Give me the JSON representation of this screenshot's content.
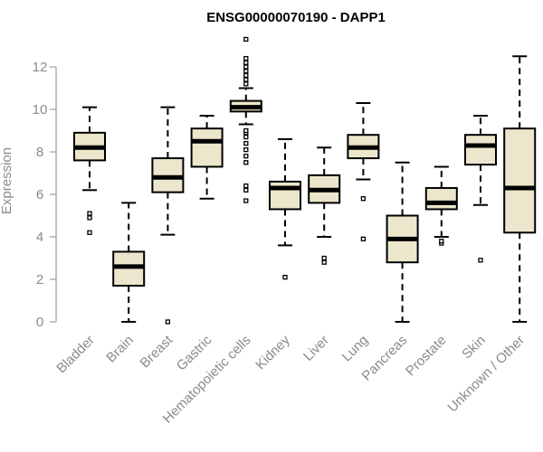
{
  "chart_data": {
    "type": "boxplot",
    "title": "ENSG00000070190 - DAPP1",
    "ylabel": "Expression",
    "xlabel": "",
    "ylim": [
      0,
      13.3
    ],
    "yticks": [
      0,
      2,
      4,
      6,
      8,
      10,
      12
    ],
    "categories": [
      "Bladder",
      "Brain",
      "Breast",
      "Gastric",
      "Hematopoietic cells",
      "Kidney",
      "Liver",
      "Lung",
      "Pancreas",
      "Prostate",
      "Skin",
      "Unknown / Other"
    ],
    "boxes": [
      {
        "category": "Bladder",
        "whisker_low": 6.2,
        "q1": 7.6,
        "median": 8.2,
        "q3": 8.9,
        "whisker_high": 10.1,
        "outliers": [
          4.2,
          4.9,
          5.1
        ]
      },
      {
        "category": "Brain",
        "whisker_low": 0.0,
        "q1": 1.7,
        "median": 2.6,
        "q3": 3.3,
        "whisker_high": 5.6,
        "outliers": []
      },
      {
        "category": "Breast",
        "whisker_low": 4.1,
        "q1": 6.1,
        "median": 6.8,
        "q3": 7.7,
        "whisker_high": 10.1,
        "outliers": [
          0.0
        ]
      },
      {
        "category": "Gastric",
        "whisker_low": 5.8,
        "q1": 7.3,
        "median": 8.5,
        "q3": 9.1,
        "whisker_high": 9.7,
        "outliers": []
      },
      {
        "category": "Hematopoietic cells",
        "whisker_low": 9.3,
        "q1": 9.9,
        "median": 10.1,
        "q3": 10.4,
        "whisker_high": 11.0,
        "outliers": [
          5.7,
          6.2,
          6.4,
          7.5,
          7.8,
          8.1,
          8.4,
          8.7,
          8.9,
          9.0,
          11.2,
          11.4,
          11.6,
          11.8,
          12.0,
          12.2,
          12.4,
          13.3
        ]
      },
      {
        "category": "Kidney",
        "whisker_low": 3.6,
        "q1": 5.3,
        "median": 6.3,
        "q3": 6.6,
        "whisker_high": 8.6,
        "outliers": [
          2.1
        ]
      },
      {
        "category": "Liver",
        "whisker_low": 4.0,
        "q1": 5.6,
        "median": 6.2,
        "q3": 6.9,
        "whisker_high": 8.2,
        "outliers": [
          2.8,
          3.0
        ]
      },
      {
        "category": "Lung",
        "whisker_low": 6.7,
        "q1": 7.7,
        "median": 8.2,
        "q3": 8.8,
        "whisker_high": 10.3,
        "outliers": [
          3.9,
          5.8
        ]
      },
      {
        "category": "Pancreas",
        "whisker_low": 0.0,
        "q1": 2.8,
        "median": 3.9,
        "q3": 5.0,
        "whisker_high": 7.5,
        "outliers": []
      },
      {
        "category": "Prostate",
        "whisker_low": 4.0,
        "q1": 5.3,
        "median": 5.6,
        "q3": 6.3,
        "whisker_high": 7.3,
        "outliers": [
          3.7,
          3.8
        ]
      },
      {
        "category": "Skin",
        "whisker_low": 5.5,
        "q1": 7.4,
        "median": 8.3,
        "q3": 8.8,
        "whisker_high": 9.7,
        "outliers": [
          2.9
        ]
      },
      {
        "category": "Unknown / Other",
        "whisker_low": 0.0,
        "q1": 4.2,
        "median": 6.3,
        "q3": 9.1,
        "whisker_high": 12.5,
        "outliers": []
      }
    ],
    "box_fill": "#ece6cc",
    "box_stroke": "#000000",
    "axis_color": "#8a8a8a",
    "grid": false,
    "legend": "none"
  }
}
